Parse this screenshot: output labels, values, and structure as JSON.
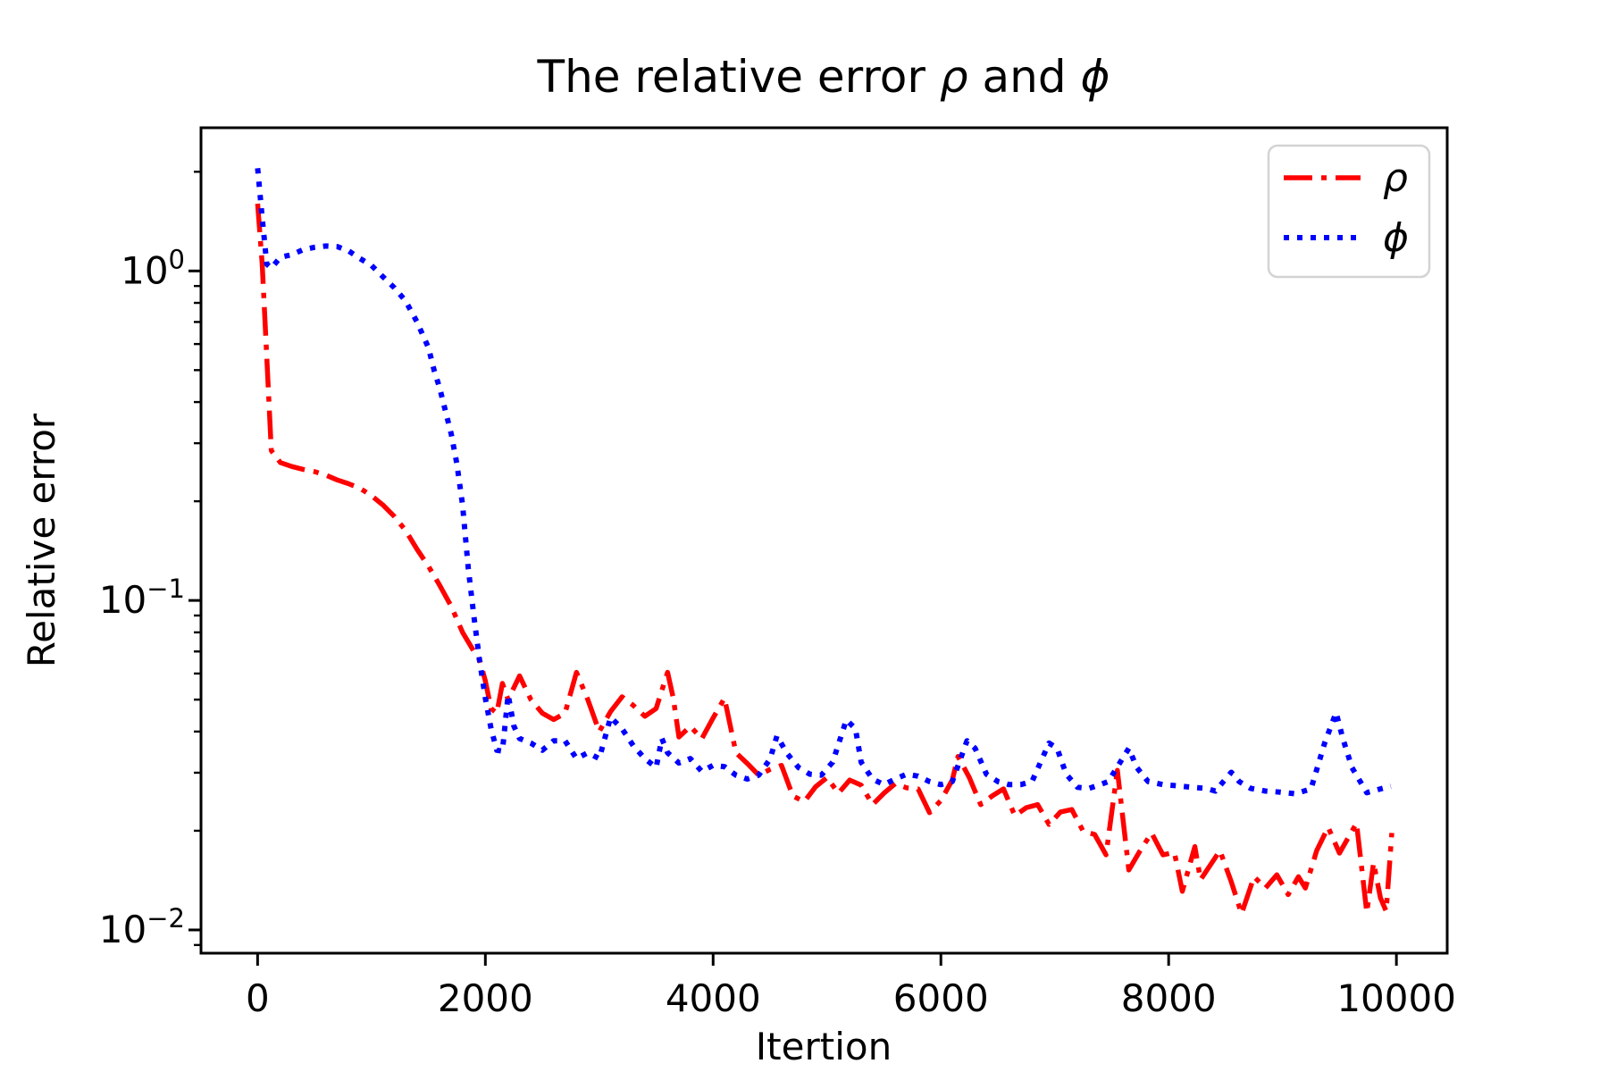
{
  "chart_data": {
    "type": "line",
    "title": {
      "full": "The relative error ρ and ϕ",
      "prefix": "The relative error ",
      "rho": "ρ",
      "mid": " and ",
      "phi": "ϕ"
    },
    "xlabel": "Itertion",
    "ylabel": "Relative error",
    "x_scale": "linear",
    "y_scale": "log",
    "x_range": [
      -497,
      10446
    ],
    "y_range": [
      0.0085,
      2.72
    ],
    "grid": false,
    "x_ticks": [
      {
        "value": 0,
        "label": "0"
      },
      {
        "value": 2000,
        "label": "2000"
      },
      {
        "value": 4000,
        "label": "4000"
      },
      {
        "value": 6000,
        "label": "6000"
      },
      {
        "value": 8000,
        "label": "8000"
      },
      {
        "value": 10000,
        "label": "10000"
      }
    ],
    "y_ticks": [
      {
        "value": 1,
        "base": "10",
        "exp": "0"
      },
      {
        "value": 0.1,
        "base": "10",
        "exp": "−1"
      },
      {
        "value": 0.01,
        "base": "10",
        "exp": "−2"
      }
    ],
    "series": [
      {
        "name": "ρ",
        "color": "#ff0000",
        "linestyle": "dashdot",
        "x": [
          0,
          40,
          80,
          120,
          200,
          300,
          400,
          500,
          600,
          700,
          800,
          900,
          1000,
          1100,
          1200,
          1300,
          1400,
          1500,
          1600,
          1700,
          1800,
          1900,
          1950,
          2000,
          2050,
          2100,
          2150,
          2200,
          2300,
          2400,
          2500,
          2600,
          2700,
          2800,
          2900,
          3000,
          3100,
          3200,
          3300,
          3400,
          3500,
          3600,
          3650,
          3700,
          3800,
          3900,
          4000,
          4100,
          4200,
          4300,
          4400,
          4500,
          4600,
          4700,
          4800,
          4900,
          5000,
          5100,
          5200,
          5300,
          5400,
          5500,
          5600,
          5700,
          5800,
          5900,
          6000,
          6100,
          6150,
          6250,
          6350,
          6450,
          6550,
          6650,
          6750,
          6850,
          6950,
          7050,
          7150,
          7250,
          7350,
          7450,
          7550,
          7650,
          7750,
          7850,
          7950,
          8050,
          8120,
          8230,
          8280,
          8450,
          8550,
          8640,
          8750,
          8850,
          8950,
          9050,
          9140,
          9200,
          9300,
          9400,
          9500,
          9650,
          9740,
          9800,
          9860,
          9910,
          9960
        ],
        "values": [
          1.6,
          1.05,
          0.55,
          0.285,
          0.262,
          0.255,
          0.25,
          0.246,
          0.24,
          0.232,
          0.226,
          0.219,
          0.208,
          0.195,
          0.18,
          0.163,
          0.143,
          0.127,
          0.111,
          0.096,
          0.08,
          0.07,
          0.066,
          0.057,
          0.047,
          0.0455,
          0.056,
          0.05,
          0.059,
          0.05,
          0.0455,
          0.0435,
          0.0455,
          0.0605,
          0.05,
          0.04,
          0.046,
          0.051,
          0.048,
          0.0445,
          0.047,
          0.0605,
          0.0505,
          0.0385,
          0.0415,
          0.038,
          0.044,
          0.0505,
          0.0345,
          0.032,
          0.0295,
          0.0307,
          0.0316,
          0.0255,
          0.0245,
          0.0272,
          0.029,
          0.026,
          0.0285,
          0.0275,
          0.024,
          0.026,
          0.0278,
          0.027,
          0.0268,
          0.0227,
          0.0247,
          0.0285,
          0.0336,
          0.029,
          0.024,
          0.0255,
          0.0268,
          0.0222,
          0.0235,
          0.024,
          0.0209,
          0.0228,
          0.0232,
          0.0199,
          0.0195,
          0.0169,
          0.0305,
          0.0152,
          0.0174,
          0.0197,
          0.0169,
          0.0172,
          0.0131,
          0.0179,
          0.0142,
          0.0174,
          0.014,
          0.0112,
          0.0145,
          0.0134,
          0.0147,
          0.0128,
          0.0145,
          0.0134,
          0.0174,
          0.0205,
          0.0171,
          0.0211,
          0.0113,
          0.016,
          0.0125,
          0.0114,
          0.0197
        ]
      },
      {
        "name": "ϕ",
        "color": "#0000ff",
        "linestyle": "dotted",
        "x": [
          0,
          40,
          80,
          120,
          200,
          300,
          400,
          500,
          600,
          700,
          800,
          900,
          1000,
          1100,
          1200,
          1300,
          1400,
          1500,
          1550,
          1600,
          1650,
          1700,
          1750,
          1800,
          1850,
          1900,
          1950,
          2000,
          2050,
          2100,
          2150,
          2200,
          2250,
          2300,
          2400,
          2500,
          2600,
          2700,
          2800,
          2900,
          3000,
          3100,
          3200,
          3300,
          3400,
          3500,
          3550,
          3600,
          3700,
          3800,
          3900,
          4000,
          4100,
          4200,
          4300,
          4400,
          4500,
          4560,
          4650,
          4750,
          4850,
          4950,
          5050,
          5170,
          5250,
          5300,
          5400,
          5500,
          5600,
          5700,
          5800,
          5900,
          6000,
          6100,
          6230,
          6300,
          6400,
          6500,
          6600,
          6700,
          6800,
          6950,
          7020,
          7100,
          7200,
          7300,
          7400,
          7470,
          7650,
          7720,
          7820,
          7950,
          8070,
          8200,
          8330,
          8410,
          8550,
          8620,
          8720,
          8850,
          8980,
          9110,
          9250,
          9370,
          9470,
          9530,
          9610,
          9740,
          9860,
          9950
        ],
        "values": [
          2.05,
          1.45,
          1.05,
          1.02,
          1.1,
          1.12,
          1.16,
          1.18,
          1.19,
          1.185,
          1.15,
          1.09,
          1.04,
          0.96,
          0.89,
          0.81,
          0.7,
          0.585,
          0.5,
          0.44,
          0.375,
          0.32,
          0.26,
          0.195,
          0.125,
          0.089,
          0.0655,
          0.0505,
          0.0408,
          0.0351,
          0.0349,
          0.0517,
          0.0416,
          0.0381,
          0.0369,
          0.0351,
          0.0375,
          0.0375,
          0.0331,
          0.0345,
          0.0331,
          0.0442,
          0.0408,
          0.0362,
          0.0331,
          0.0311,
          0.0381,
          0.0345,
          0.0321,
          0.0331,
          0.0303,
          0.0316,
          0.0313,
          0.0295,
          0.0287,
          0.0295,
          0.033,
          0.0388,
          0.0343,
          0.0311,
          0.0297,
          0.0295,
          0.0323,
          0.0434,
          0.0408,
          0.0323,
          0.0287,
          0.0276,
          0.0287,
          0.0297,
          0.0293,
          0.0282,
          0.0276,
          0.0282,
          0.0375,
          0.0356,
          0.0297,
          0.0282,
          0.0276,
          0.0276,
          0.0282,
          0.0369,
          0.0356,
          0.0297,
          0.0271,
          0.0269,
          0.0276,
          0.0282,
          0.0356,
          0.0311,
          0.0282,
          0.0276,
          0.0274,
          0.0271,
          0.0269,
          0.0264,
          0.0301,
          0.0282,
          0.0269,
          0.0264,
          0.0262,
          0.0259,
          0.0268,
          0.0369,
          0.0457,
          0.0381,
          0.0311,
          0.0261,
          0.0268,
          0.0273
        ]
      }
    ],
    "legend": {
      "position": "upper right",
      "entries": [
        {
          "label": "ρ",
          "color": "#ff0000",
          "linestyle": "dashdot"
        },
        {
          "label": "ϕ",
          "color": "#0000ff",
          "linestyle": "dotted"
        }
      ]
    }
  }
}
